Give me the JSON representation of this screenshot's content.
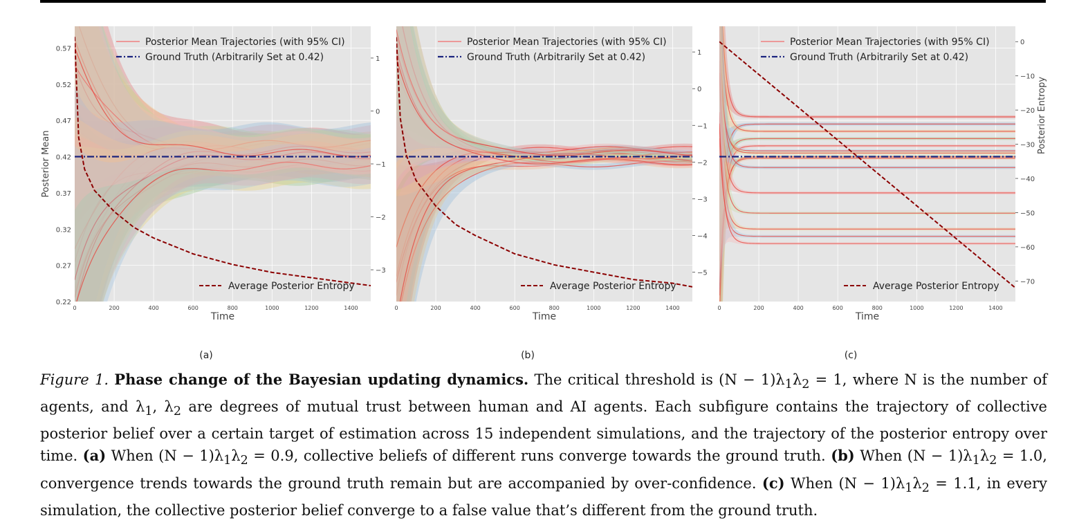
{
  "figure": {
    "caption": {
      "figure_label": "Figure 1.",
      "title": "Phase change of the Bayesian updating dynamics.",
      "text_1": " The critical threshold is (N − 1)λ",
      "text_2": "λ",
      "text_3": " = 1, where N is the number of agents, and λ",
      "text_4": ", λ",
      "text_5": " are degrees of mutual trust between human and AI agents. Each subfigure contains the trajectory of collective posterior belief over a certain target of estimation across 15 independent simulations, and the trajectory of the posterior entropy over time. ",
      "a_label": "(a)",
      "a_text_1": " When (N − 1)λ",
      "a_text_2": "λ",
      "a_text_3": " = 0.9, collective beliefs of different runs converge towards the ground truth. ",
      "b_label": "(b)",
      "b_text_1": " When (N − 1)λ",
      "b_text_2": "λ",
      "b_text_3": " = 1.0, convergence trends towards the ground truth remain but are accompanied by over-confidence. ",
      "c_label": "(c)",
      "c_text_1": " When (N − 1)λ",
      "c_text_2": "λ",
      "c_text_3": " = 1.1, in every simulation, the collective posterior belief converge to a false value that’s different from the ground truth.",
      "sub1": "1",
      "sub2": "2"
    }
  },
  "chart_data": [
    {
      "type": "line",
      "panel_label": "(a)",
      "xlabel": "Time",
      "ylabel": "Posterior Mean",
      "ylabel_right": "",
      "xlim": [
        0,
        1500
      ],
      "ylim": [
        0.22,
        0.6
      ],
      "ylim_right": [
        -3.6,
        1.6
      ],
      "xticks": [
        0,
        200,
        400,
        600,
        800,
        1000,
        1200,
        1400
      ],
      "yticks": [
        0.22,
        0.27,
        0.32,
        0.37,
        0.42,
        0.47,
        0.52,
        0.57
      ],
      "yticks_right": [
        1,
        0,
        -1,
        -2,
        -3
      ],
      "legend_top": [
        "Posterior Mean Trajectories (with 95% CI)",
        "Ground Truth (Arbitrarily Set at 0.42)"
      ],
      "legend_bottom": [
        "Average Posterior Entropy"
      ],
      "ground_truth": 0.42,
      "n_runs": 15,
      "regime": "converge",
      "final_values": [
        0.43,
        0.415,
        0.425,
        0.41,
        0.435,
        0.42,
        0.405,
        0.428,
        0.418,
        0.438,
        0.412,
        0.43,
        0.422,
        0.408,
        0.425
      ],
      "entropy": {
        "x": [
          0,
          20,
          50,
          100,
          200,
          300,
          400,
          600,
          800,
          1000,
          1200,
          1400,
          1500
        ],
        "y": [
          1.4,
          -0.5,
          -1.1,
          -1.5,
          -1.9,
          -2.2,
          -2.4,
          -2.7,
          -2.9,
          -3.05,
          -3.15,
          -3.25,
          -3.3
        ]
      },
      "grid": true,
      "legend_position": "top-center"
    },
    {
      "type": "line",
      "panel_label": "(b)",
      "xlabel": "Time",
      "ylabel": "",
      "ylabel_right": "",
      "xlim": [
        0,
        1500
      ],
      "ylim": [
        0.22,
        0.6
      ],
      "ylim_right": [
        -5.8,
        1.7
      ],
      "xticks": [
        0,
        200,
        400,
        600,
        800,
        1000,
        1200,
        1400
      ],
      "yticks": [],
      "yticks_right": [
        1,
        0,
        -1,
        -2,
        -3,
        -4,
        -5
      ],
      "legend_top": [
        "Posterior Mean Trajectories (with 95% CI)",
        "Ground Truth (Arbitrarily Set at 0.42)"
      ],
      "legend_bottom": [
        "Average Posterior Entropy"
      ],
      "ground_truth": 0.42,
      "n_runs": 15,
      "regime": "overconfident",
      "final_values": [
        0.43,
        0.428,
        0.424,
        0.42,
        0.418,
        0.422,
        0.426,
        0.415,
        0.412,
        0.41,
        0.43,
        0.416,
        0.421,
        0.425,
        0.413
      ],
      "entropy": {
        "x": [
          0,
          20,
          50,
          100,
          200,
          300,
          400,
          600,
          800,
          1000,
          1200,
          1400,
          1500
        ],
        "y": [
          1.4,
          -0.8,
          -1.8,
          -2.5,
          -3.2,
          -3.7,
          -4.0,
          -4.5,
          -4.8,
          -5.0,
          -5.2,
          -5.3,
          -5.4
        ]
      },
      "grid": true,
      "legend_position": "top-center"
    },
    {
      "type": "line",
      "panel_label": "(c)",
      "xlabel": "Time",
      "ylabel": "",
      "ylabel_right": "Posterior Entropy",
      "xlim": [
        0,
        1500
      ],
      "ylim": [
        0.22,
        0.6
      ],
      "ylim_right": [
        -76,
        4.5
      ],
      "xticks": [
        0,
        200,
        400,
        600,
        800,
        1000,
        1200,
        1400
      ],
      "yticks": [],
      "yticks_right": [
        0,
        -10,
        -20,
        -30,
        -40,
        -50,
        -60,
        -70
      ],
      "legend_top": [
        "Posterior Mean Trajectories (with 95% CI)",
        "Ground Truth (Arbitrarily Set at 0.42)"
      ],
      "legend_bottom": [
        "Average Posterior Entropy"
      ],
      "ground_truth": 0.42,
      "n_runs": 15,
      "regime": "false_convergence",
      "final_values": [
        0.475,
        0.465,
        0.455,
        0.445,
        0.435,
        0.428,
        0.425,
        0.42,
        0.418,
        0.405,
        0.37,
        0.342,
        0.32,
        0.31,
        0.3
      ],
      "entropy": {
        "x": [
          0,
          1500
        ],
        "y": [
          0,
          -72
        ]
      },
      "grid": true,
      "legend_position": "top-center"
    }
  ]
}
